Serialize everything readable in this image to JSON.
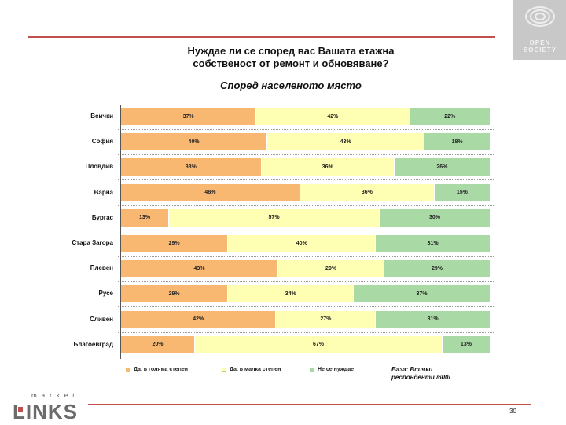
{
  "page": {
    "title": "Нуждае ли се според вас Вашата етажна\nсобственост от ремонт и обновяване?",
    "subtitle": "Според населеното място",
    "page_number": "30",
    "base_note": "База: Всички\nреспонденти  /600/",
    "top_logo_lines": [
      "OPEN",
      "SOCIETY"
    ],
    "bottom_logo_small": "market",
    "bottom_logo_big": "LINKS"
  },
  "colors": {
    "accent_line": "#c0504d",
    "series": [
      "#f9b871",
      "#ffffb3",
      "#a9d9a5"
    ]
  },
  "chart_data": {
    "type": "bar",
    "orientation": "horizontal-stacked-100",
    "title": "Нуждае ли се според вас Вашата етажна собственост от ремонт и обновяване?",
    "subtitle": "Според населеното място",
    "categories": [
      "Всички",
      "София",
      "Пловдив",
      "Варна",
      "Бургас",
      "Стара Загора",
      "Плевен",
      "Русе",
      "Сливен",
      "Благоевград"
    ],
    "series": [
      {
        "name": "Да, в голяма степен",
        "values": [
          37,
          40,
          38,
          48,
          13,
          29,
          43,
          29,
          42,
          20
        ]
      },
      {
        "name": "Да, в малка степен",
        "values": [
          42,
          43,
          36,
          36,
          57,
          40,
          29,
          34,
          27,
          67
        ]
      },
      {
        "name": "Не се нуждае",
        "values": [
          22,
          18,
          26,
          15,
          30,
          31,
          29,
          37,
          31,
          13
        ]
      }
    ],
    "value_suffix": "%",
    "legend_position": "bottom",
    "grid": false
  }
}
